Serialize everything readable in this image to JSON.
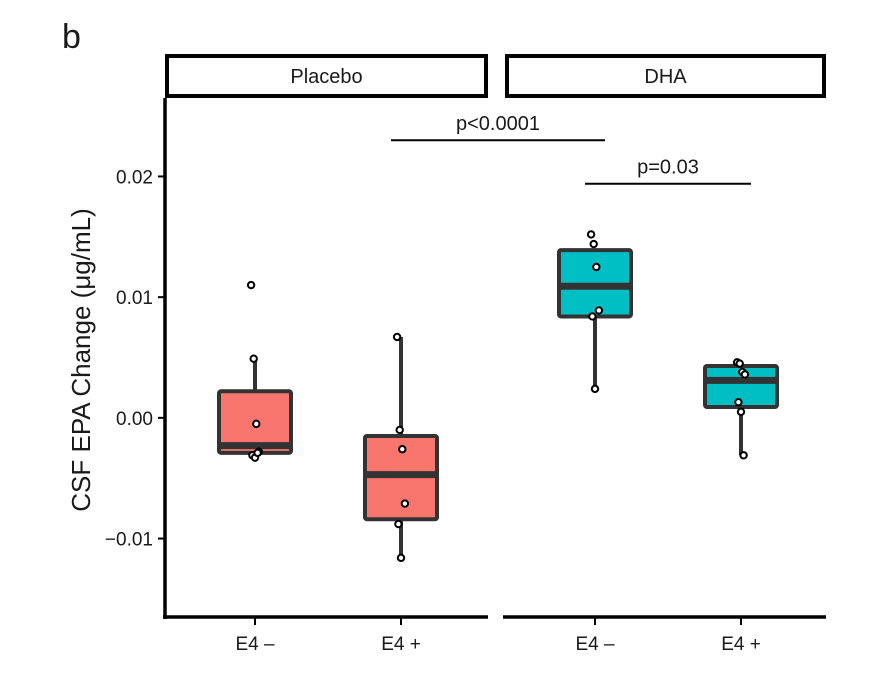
{
  "panel_label": "b",
  "chart_data": {
    "type": "box",
    "ylabel": "CSF EPA Change (μg/mL)",
    "ylim": [
      -0.0165,
      0.0265
    ],
    "yticks": [
      {
        "value": 0.02,
        "label": "0.02"
      },
      {
        "value": 0.01,
        "label": "0.01"
      },
      {
        "value": 0.0,
        "label": "0.00"
      },
      {
        "value": -0.01,
        "label": "−0.01"
      }
    ],
    "grid": false,
    "legend": "none",
    "facets": [
      {
        "label": "Placebo",
        "groups": [
          {
            "label": "E4 –",
            "color": "#F8766D",
            "box": {
              "whisker_low": -0.0031,
              "q1": -0.0029,
              "median": -0.0023,
              "q3": 0.0022,
              "whisker_high": 0.0049
            },
            "points": [
              0.011,
              0.0049,
              -0.0005,
              -0.0028,
              -0.0031,
              -0.0033,
              -0.0029
            ]
          },
          {
            "label": "E4 +",
            "color": "#F8766D",
            "box": {
              "whisker_low": -0.0116,
              "q1": -0.0084,
              "median": -0.0047,
              "q3": -0.0015,
              "whisker_high": 0.0067
            },
            "points": [
              0.0067,
              -0.001,
              -0.0026,
              -0.0071,
              -0.0088,
              -0.0116
            ]
          }
        ]
      },
      {
        "label": "DHA",
        "groups": [
          {
            "label": "E4 –",
            "color": "#00BFC4",
            "box": {
              "whisker_low": 0.0024,
              "q1": 0.0084,
              "median": 0.0109,
              "q3": 0.0139,
              "whisker_high": 0.0139
            },
            "points": [
              0.0152,
              0.0144,
              0.0125,
              0.0089,
              0.0084,
              0.0024
            ]
          },
          {
            "label": "E4 +",
            "color": "#00BFC4",
            "box": {
              "whisker_low": -0.0031,
              "q1": 0.0009,
              "median": 0.0031,
              "q3": 0.0043,
              "whisker_high": 0.0043
            },
            "points": [
              0.0046,
              0.0045,
              0.0038,
              0.0036,
              0.0013,
              0.0005,
              -0.0031
            ]
          }
        ]
      }
    ],
    "annotations": [
      {
        "text": "p<0.0001",
        "from": {
          "facet": 0,
          "group": 1
        },
        "to": {
          "facet": 1,
          "group": 0
        },
        "y": 0.023
      },
      {
        "text": "p=0.03",
        "from": {
          "facet": 1,
          "group": 0
        },
        "to": {
          "facet": 1,
          "group": 1
        },
        "y": 0.0194
      }
    ]
  }
}
